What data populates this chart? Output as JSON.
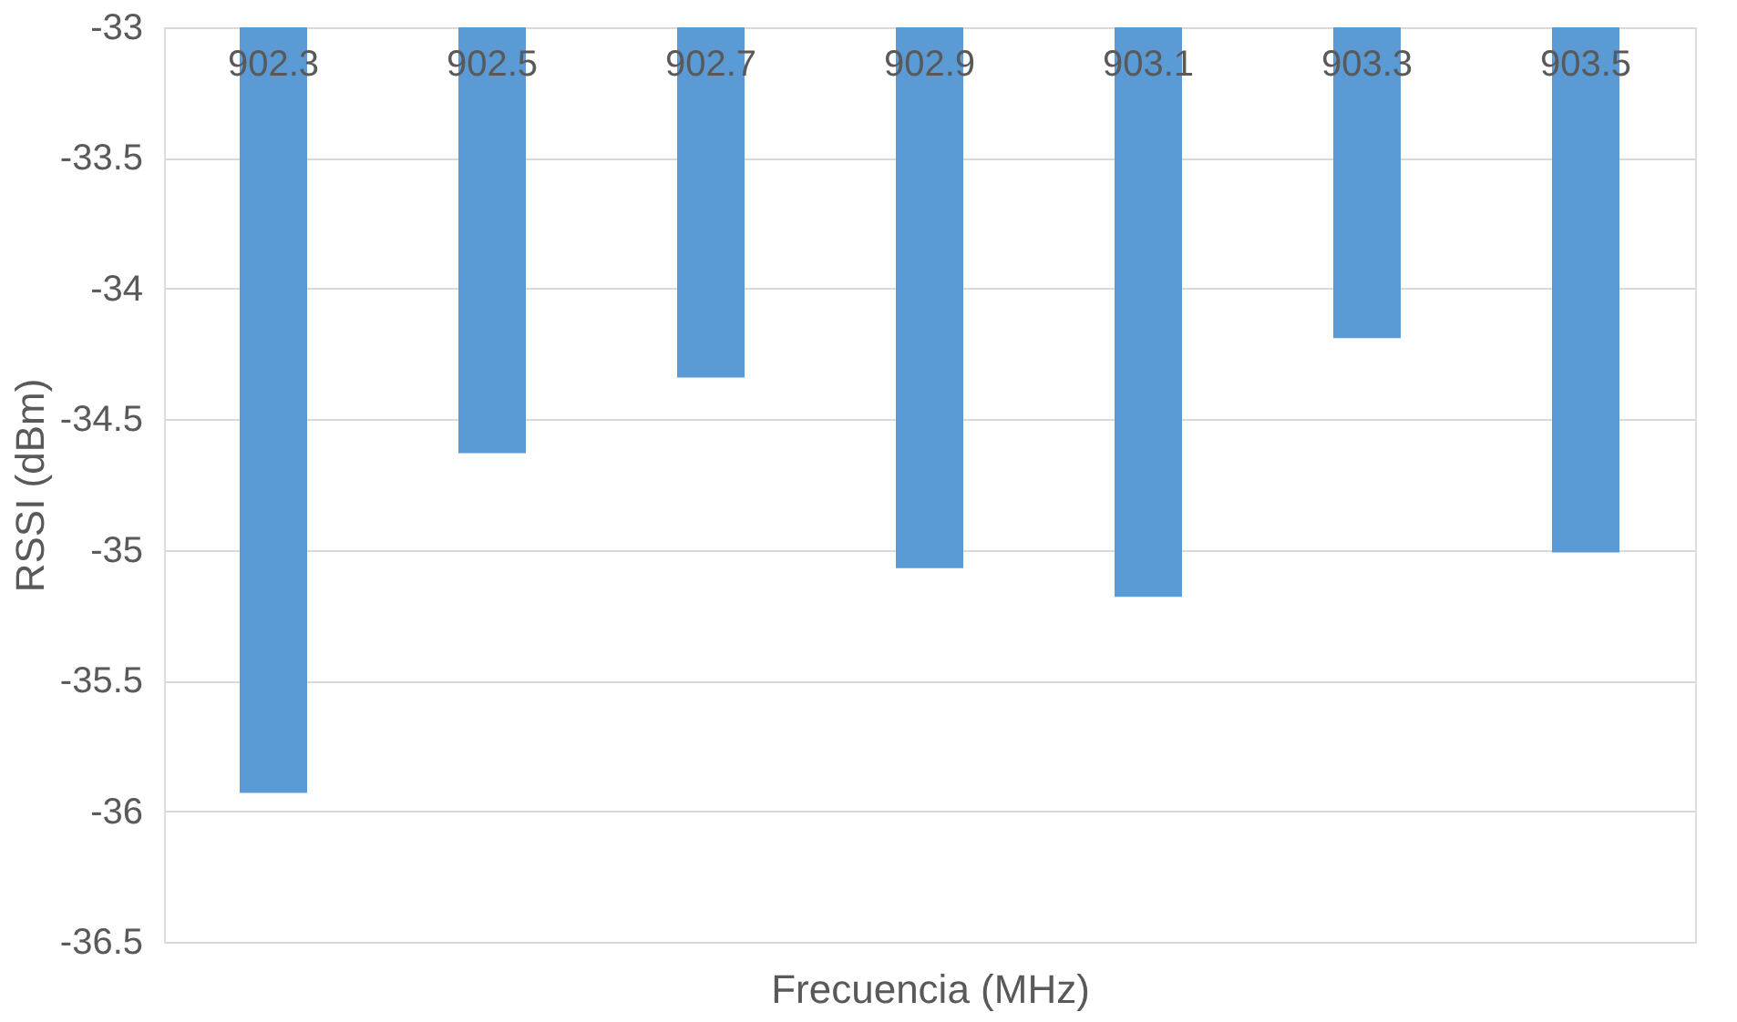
{
  "chart_data": {
    "type": "bar",
    "xlabel": "Frecuencia (MHz)",
    "ylabel": "RSSI (dBm)",
    "categories": [
      "902.3",
      "902.5",
      "902.7",
      "902.9",
      "903.1",
      "903.3",
      "903.5"
    ],
    "values": [
      -35.93,
      -34.63,
      -34.34,
      -35.07,
      -35.18,
      -34.19,
      -35.01
    ],
    "color": "#5b9bd5",
    "ylim": [
      -36.5,
      -33
    ],
    "yticks": [
      -36.5,
      -36,
      -35.5,
      -35,
      -34.5,
      -34,
      -33.5,
      -33
    ],
    "grid": "y"
  }
}
